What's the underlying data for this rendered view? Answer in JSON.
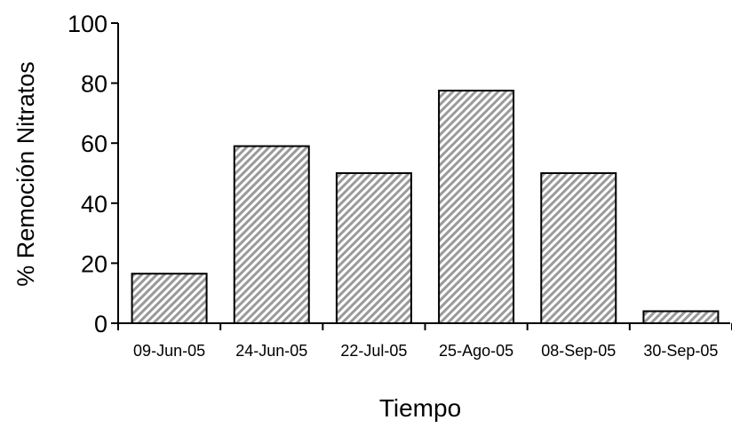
{
  "chart_data": {
    "type": "bar",
    "categories": [
      "09-Jun-05",
      "24-Jun-05",
      "22-Jul-05",
      "25-Ago-05",
      "08-Sep-05",
      "30-Sep-05"
    ],
    "values": [
      16.5,
      59,
      50,
      77.5,
      50,
      4
    ],
    "xlabel": "Tiempo",
    "ylabel": "% Remoción Nitratos",
    "ylim": [
      0,
      100
    ],
    "yticks": [
      "0",
      "20",
      "40",
      "60",
      "80",
      "100"
    ],
    "grid": false,
    "legend": "none",
    "bar_fill": "hatched-diagonal",
    "colors": {
      "bar_stripe": "#9a9a9a",
      "bar_background": "#ffffff",
      "bar_edge": "#000000",
      "axis": "#000000"
    }
  }
}
